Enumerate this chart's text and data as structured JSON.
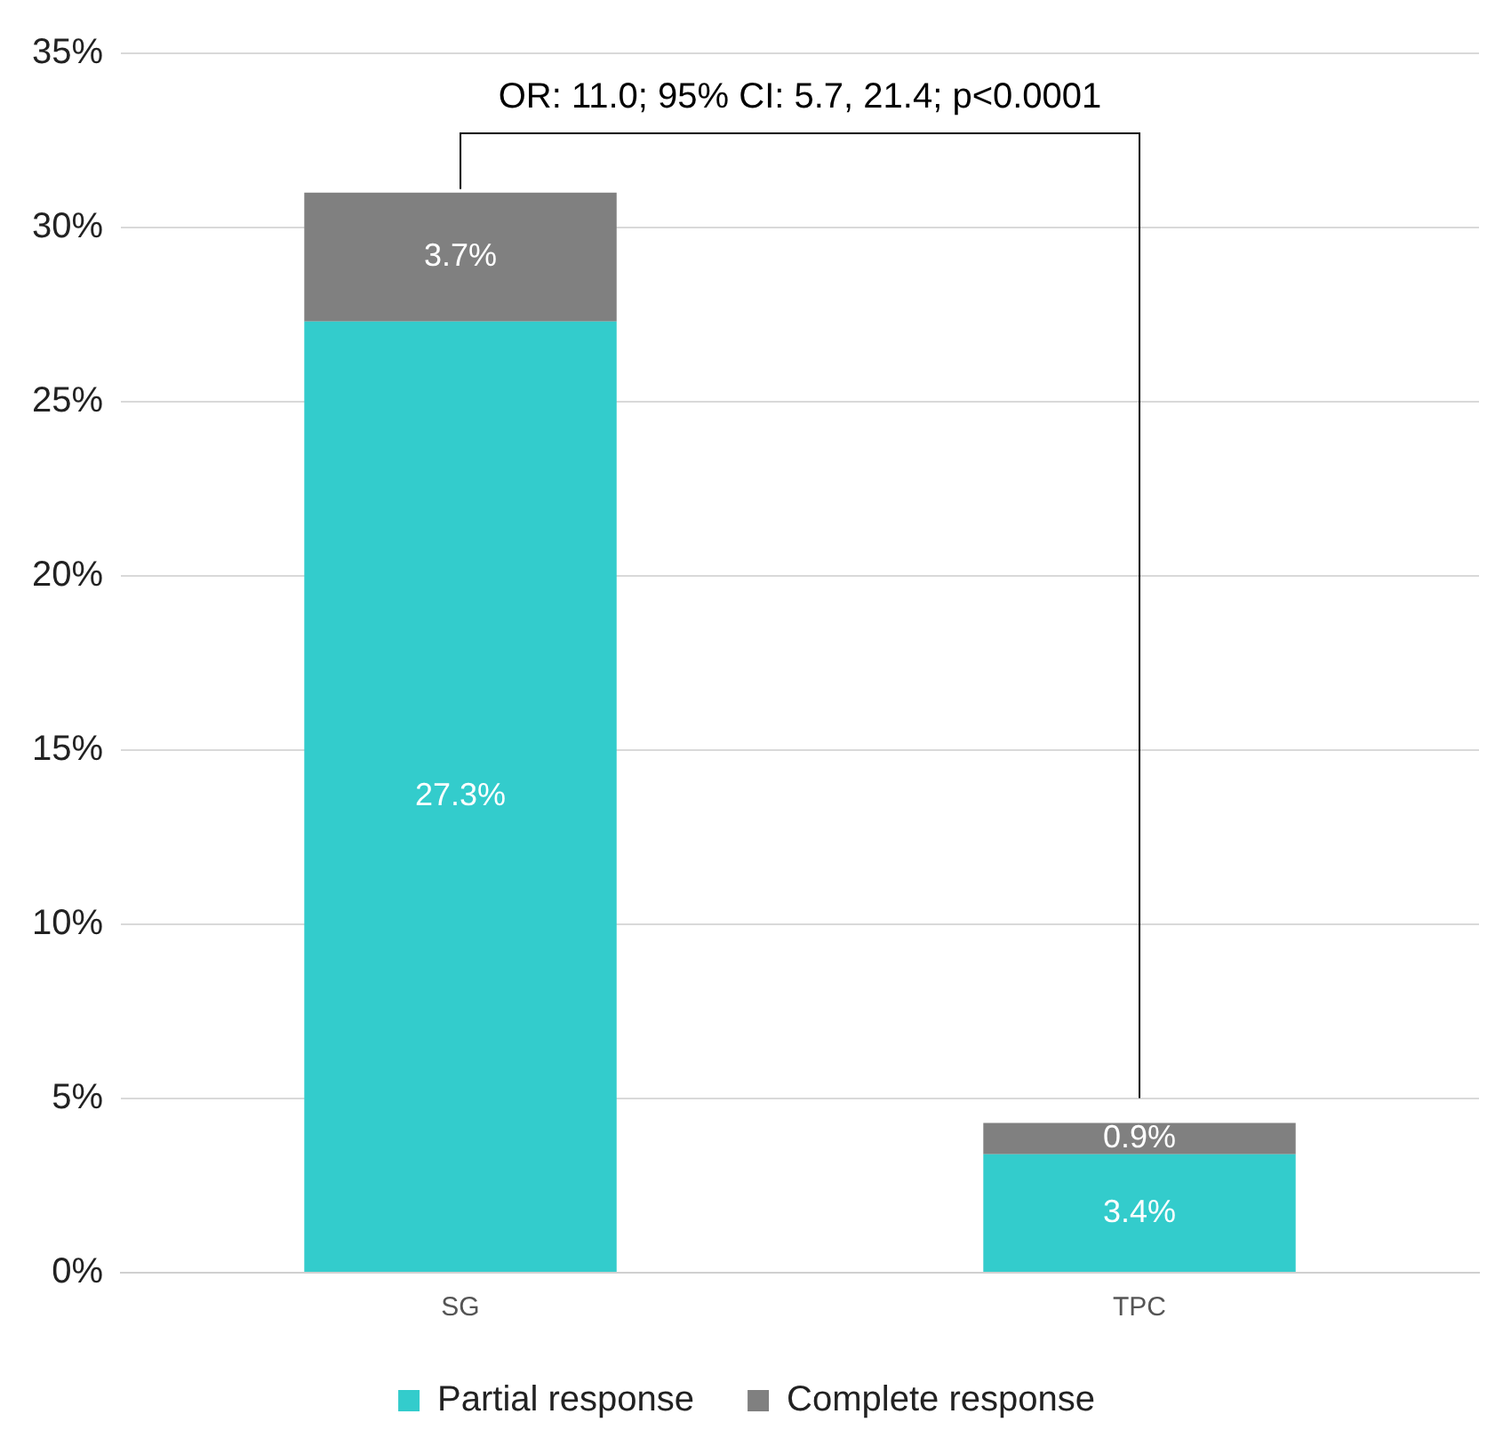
{
  "chart_data": {
    "type": "bar",
    "stacked": true,
    "categories": [
      "SG",
      "TPC"
    ],
    "series": [
      {
        "name": "Partial response",
        "color": "#33cccc",
        "values": [
          27.3,
          3.4
        ],
        "value_labels": [
          "27.3%",
          "3.4%"
        ]
      },
      {
        "name": "Complete response",
        "color": "#808080",
        "values": [
          3.7,
          0.9
        ],
        "value_labels": [
          "3.7%",
          "0.9%"
        ]
      }
    ],
    "ylim": [
      0,
      35
    ],
    "yticks": [
      {
        "value": 0,
        "label": "0%"
      },
      {
        "value": 5,
        "label": "5%"
      },
      {
        "value": 10,
        "label": "10%"
      },
      {
        "value": 15,
        "label": "15%"
      },
      {
        "value": 20,
        "label": "20%"
      },
      {
        "value": 25,
        "label": "25%"
      },
      {
        "value": 30,
        "label": "30%"
      },
      {
        "value": 35,
        "label": "35%"
      }
    ],
    "grid": "y",
    "legend": "bottom",
    "annotations": [
      "OR: 11.0; 95% CI: 5.7, 21.4; p<0.0001"
    ]
  }
}
